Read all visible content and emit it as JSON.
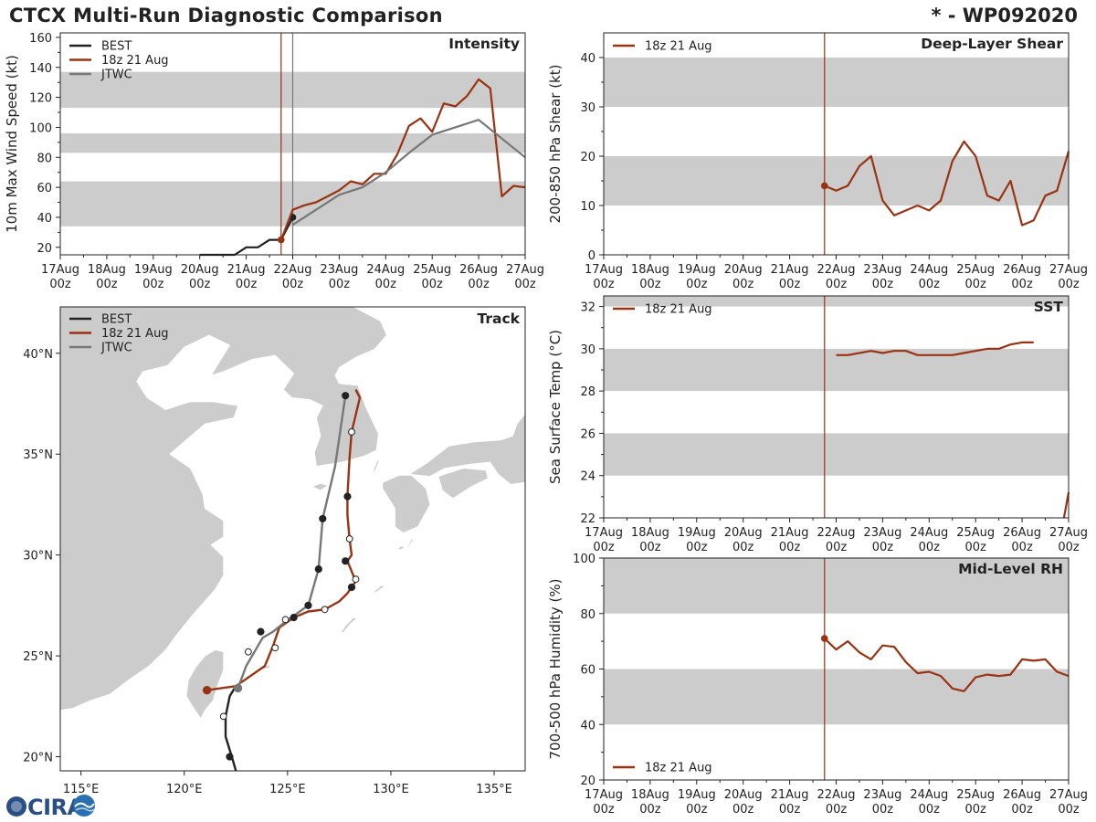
{
  "header": {
    "title": "CTCX Multi-Run Diagnostic Comparison",
    "storm_id": "* - WP092020"
  },
  "colors": {
    "best": "#222222",
    "run": "#993311",
    "jtwc": "#777777",
    "band": "#cccccc",
    "land": "#cccccc",
    "ocean": "#ffffff"
  },
  "logo": {
    "text": "CIRA"
  },
  "chart_data": [
    {
      "id": "intensity",
      "type": "line",
      "title": "Intensity",
      "xlabel": "",
      "ylabel": "10m Max Wind Speed (kt)",
      "xlim": [
        0,
        10
      ],
      "ylim": [
        15,
        163
      ],
      "yticks": [
        20,
        40,
        60,
        80,
        100,
        120,
        140,
        160
      ],
      "xtick_labels": [
        [
          "17Aug",
          "00z"
        ],
        [
          "18Aug",
          "00z"
        ],
        [
          "19Aug",
          "00z"
        ],
        [
          "20Aug",
          "00z"
        ],
        [
          "21Aug",
          "00z"
        ],
        [
          "22Aug",
          "00z"
        ],
        [
          "23Aug",
          "00z"
        ],
        [
          "24Aug",
          "00z"
        ],
        [
          "25Aug",
          "00z"
        ],
        [
          "26Aug",
          "00z"
        ],
        [
          "27Aug",
          "00z"
        ]
      ],
      "bands": [
        [
          34,
          64
        ],
        [
          83,
          96
        ],
        [
          113,
          137
        ]
      ],
      "vlines": [
        {
          "x": 4.75,
          "series": "run"
        },
        {
          "x": 5.0,
          "series": "jtwc"
        }
      ],
      "legend": [
        {
          "label": "BEST",
          "series": "best"
        },
        {
          "label": "18z 21 Aug",
          "series": "run"
        },
        {
          "label": "JTWC",
          "series": "jtwc"
        }
      ],
      "series": [
        {
          "name": "BEST",
          "key": "best",
          "points": [
            [
              3.0,
              15
            ],
            [
              3.25,
              15
            ],
            [
              3.5,
              15
            ],
            [
              3.75,
              15
            ],
            [
              4.0,
              20
            ],
            [
              4.25,
              20
            ],
            [
              4.5,
              25
            ],
            [
              4.75,
              25
            ],
            [
              5.0,
              40
            ]
          ],
          "markers": [
            [
              5.0,
              40
            ]
          ]
        },
        {
          "name": "18z 21 Aug",
          "key": "run",
          "points": [
            [
              4.75,
              25
            ],
            [
              5.0,
              45
            ],
            [
              5.25,
              48
            ],
            [
              5.5,
              50
            ],
            [
              5.75,
              54
            ],
            [
              6.0,
              58
            ],
            [
              6.25,
              64
            ],
            [
              6.5,
              62
            ],
            [
              6.75,
              69
            ],
            [
              7.0,
              69
            ],
            [
              7.25,
              82
            ],
            [
              7.5,
              101
            ],
            [
              7.75,
              106
            ],
            [
              8.0,
              97
            ],
            [
              8.25,
              116
            ],
            [
              8.5,
              114
            ],
            [
              8.75,
              121
            ],
            [
              9.0,
              132
            ],
            [
              9.25,
              126
            ],
            [
              9.5,
              54
            ],
            [
              9.75,
              61
            ],
            [
              10.0,
              60
            ]
          ],
          "markers": [
            [
              4.75,
              25
            ]
          ]
        },
        {
          "name": "JTWC",
          "key": "jtwc",
          "points": [
            [
              5.0,
              35
            ],
            [
              5.5,
              45
            ],
            [
              6.0,
              55
            ],
            [
              6.5,
              60
            ],
            [
              7.0,
              70
            ],
            [
              7.5,
              83
            ],
            [
              8.0,
              95
            ],
            [
              9.0,
              105
            ],
            [
              10.0,
              80
            ]
          ],
          "markers": []
        }
      ]
    },
    {
      "id": "shear",
      "type": "line",
      "title": "Deep-Layer Shear",
      "ylabel": "200-850 hPa Shear (kt)",
      "xlim": [
        0,
        10
      ],
      "ylim": [
        0,
        45
      ],
      "yticks": [
        0,
        10,
        20,
        30,
        40
      ],
      "xtick_labels": [
        [
          "17Aug",
          "00z"
        ],
        [
          "18Aug",
          "00z"
        ],
        [
          "19Aug",
          "00z"
        ],
        [
          "20Aug",
          "00z"
        ],
        [
          "21Aug",
          "00z"
        ],
        [
          "22Aug",
          "00z"
        ],
        [
          "23Aug",
          "00z"
        ],
        [
          "24Aug",
          "00z"
        ],
        [
          "25Aug",
          "00z"
        ],
        [
          "26Aug",
          "00z"
        ],
        [
          "27Aug",
          "00z"
        ]
      ],
      "bands": [
        [
          10,
          20
        ],
        [
          30,
          40
        ]
      ],
      "vlines": [
        {
          "x": 4.75,
          "series": "run"
        }
      ],
      "legend": [
        {
          "label": "18z 21 Aug",
          "series": "run"
        }
      ],
      "series": [
        {
          "name": "18z 21 Aug",
          "key": "run",
          "points": [
            [
              4.75,
              14
            ],
            [
              5.0,
              13
            ],
            [
              5.25,
              14
            ],
            [
              5.5,
              18
            ],
            [
              5.75,
              20
            ],
            [
              6.0,
              11
            ],
            [
              6.25,
              8
            ],
            [
              6.5,
              9
            ],
            [
              6.75,
              10
            ],
            [
              7.0,
              9
            ],
            [
              7.25,
              11
            ],
            [
              7.5,
              19
            ],
            [
              7.75,
              23
            ],
            [
              8.0,
              20
            ],
            [
              8.25,
              12
            ],
            [
              8.5,
              11
            ],
            [
              8.75,
              15
            ],
            [
              9.0,
              6
            ],
            [
              9.25,
              7
            ],
            [
              9.5,
              12
            ],
            [
              9.75,
              13
            ],
            [
              10.0,
              21
            ]
          ],
          "markers": [
            [
              4.75,
              14
            ]
          ]
        }
      ]
    },
    {
      "id": "sst",
      "type": "line",
      "title": "SST",
      "ylabel": "Sea Surface Temp (°C)",
      "xlim": [
        0,
        10
      ],
      "ylim": [
        22,
        32.5
      ],
      "yticks": [
        22,
        24,
        26,
        28,
        30,
        32
      ],
      "xtick_labels": [
        [
          "17Aug",
          "00z"
        ],
        [
          "18Aug",
          "00z"
        ],
        [
          "19Aug",
          "00z"
        ],
        [
          "20Aug",
          "00z"
        ],
        [
          "21Aug",
          "00z"
        ],
        [
          "22Aug",
          "00z"
        ],
        [
          "23Aug",
          "00z"
        ],
        [
          "24Aug",
          "00z"
        ],
        [
          "25Aug",
          "00z"
        ],
        [
          "26Aug",
          "00z"
        ],
        [
          "27Aug",
          "00z"
        ]
      ],
      "bands": [
        [
          24,
          26
        ],
        [
          28,
          30
        ],
        [
          32,
          32.5
        ]
      ],
      "vlines": [
        {
          "x": 4.75,
          "series": "run"
        }
      ],
      "legend": [
        {
          "label": "18z 21 Aug",
          "series": "run"
        }
      ],
      "series": [
        {
          "name": "18z 21 Aug",
          "key": "run",
          "points": [
            [
              5.0,
              29.7
            ],
            [
              5.25,
              29.7
            ],
            [
              5.5,
              29.8
            ],
            [
              5.75,
              29.9
            ],
            [
              6.0,
              29.8
            ],
            [
              6.25,
              29.9
            ],
            [
              6.5,
              29.9
            ],
            [
              6.75,
              29.7
            ],
            [
              7.0,
              29.7
            ],
            [
              7.25,
              29.7
            ],
            [
              7.5,
              29.7
            ],
            [
              7.75,
              29.8
            ],
            [
              8.0,
              29.9
            ],
            [
              8.25,
              30.0
            ],
            [
              8.5,
              30.0
            ],
            [
              8.75,
              30.2
            ],
            [
              9.0,
              30.3
            ],
            [
              9.25,
              30.3
            ]
          ],
          "markers": []
        },
        {
          "name": "18z 21 Aug tail",
          "key": "run",
          "points": [
            [
              9.9,
              22.0
            ],
            [
              10.0,
              23.2
            ]
          ],
          "markers": []
        }
      ]
    },
    {
      "id": "rh",
      "type": "line",
      "title": "Mid-Level RH",
      "ylabel": "700-500 hPa Humidity (%)",
      "xlim": [
        0,
        10
      ],
      "ylim": [
        20,
        100
      ],
      "yticks": [
        20,
        40,
        60,
        80,
        100
      ],
      "xtick_labels": [
        [
          "17Aug",
          "00z"
        ],
        [
          "18Aug",
          "00z"
        ],
        [
          "19Aug",
          "00z"
        ],
        [
          "20Aug",
          "00z"
        ],
        [
          "21Aug",
          "00z"
        ],
        [
          "22Aug",
          "00z"
        ],
        [
          "23Aug",
          "00z"
        ],
        [
          "24Aug",
          "00z"
        ],
        [
          "25Aug",
          "00z"
        ],
        [
          "26Aug",
          "00z"
        ],
        [
          "27Aug",
          "00z"
        ]
      ],
      "bands": [
        [
          40,
          60
        ],
        [
          80,
          100
        ]
      ],
      "vlines": [
        {
          "x": 4.75,
          "series": "run"
        }
      ],
      "legend": [
        {
          "label": "18z 21 Aug",
          "series": "run"
        }
      ],
      "series": [
        {
          "name": "18z 21 Aug",
          "key": "run",
          "points": [
            [
              4.75,
              71
            ],
            [
              5.0,
              67
            ],
            [
              5.25,
              70
            ],
            [
              5.5,
              66
            ],
            [
              5.75,
              63.5
            ],
            [
              6.0,
              68.5
            ],
            [
              6.25,
              68
            ],
            [
              6.5,
              62.5
            ],
            [
              6.75,
              58.5
            ],
            [
              7.0,
              59
            ],
            [
              7.25,
              57.5
            ],
            [
              7.5,
              53
            ],
            [
              7.75,
              52
            ],
            [
              8.0,
              57
            ],
            [
              8.25,
              58
            ],
            [
              8.5,
              57.5
            ],
            [
              8.75,
              58
            ],
            [
              9.0,
              63.5
            ],
            [
              9.25,
              63
            ],
            [
              9.5,
              63.5
            ],
            [
              9.75,
              59
            ],
            [
              10.0,
              57.5
            ]
          ],
          "markers": [
            [
              4.75,
              71
            ]
          ]
        }
      ]
    },
    {
      "id": "track",
      "type": "map",
      "title": "Track",
      "lon_range": [
        114,
        136.5
      ],
      "lat_range": [
        19.3,
        42.3
      ],
      "lon_ticks": [
        115,
        120,
        125,
        130,
        135
      ],
      "lat_ticks": [
        20,
        25,
        30,
        35,
        40
      ],
      "lon_labels": [
        "115°E",
        "120°E",
        "125°E",
        "130°E",
        "135°E"
      ],
      "lat_labels": [
        "20°N",
        "25°N",
        "30°N",
        "35°N",
        "40°N"
      ],
      "legend": [
        {
          "label": "BEST",
          "series": "best"
        },
        {
          "label": "18z 21 Aug",
          "series": "run"
        },
        {
          "label": "JTWC",
          "series": "jtwc"
        }
      ],
      "series": [
        {
          "name": "BEST",
          "key": "best",
          "points": [
            [
              122.5,
              19.3
            ],
            [
              122.3,
              20.0
            ],
            [
              122.0,
              21.0
            ],
            [
              122.0,
              22.0
            ],
            [
              122.2,
              23.0
            ],
            [
              122.5,
              23.5
            ]
          ],
          "markers": [
            {
              "lon": 122.2,
              "lat": 20.0,
              "fill": "filled"
            },
            {
              "lon": 121.9,
              "lat": 22.0,
              "fill": "open"
            }
          ]
        },
        {
          "name": "18z 21 Aug",
          "key": "run",
          "points": [
            [
              121.1,
              23.3
            ],
            [
              122.5,
              23.5
            ],
            [
              123.9,
              24.5
            ],
            [
              124.3,
              25.5
            ],
            [
              124.6,
              26.4
            ],
            [
              125.3,
              26.9
            ],
            [
              126.0,
              27.2
            ],
            [
              126.8,
              27.3
            ],
            [
              127.5,
              27.7
            ],
            [
              127.9,
              28.1
            ],
            [
              128.3,
              28.7
            ],
            [
              127.9,
              29.7
            ],
            [
              128.1,
              30.0
            ],
            [
              128.0,
              30.8
            ],
            [
              127.9,
              32.0
            ],
            [
              127.9,
              32.9
            ],
            [
              128.0,
              34.8
            ],
            [
              128.1,
              36.1
            ],
            [
              128.5,
              37.8
            ],
            [
              128.3,
              38.2
            ]
          ],
          "markers": [
            {
              "lon": 121.1,
              "lat": 23.3,
              "fill": "runfill"
            }
          ]
        },
        {
          "name": "JTWC",
          "key": "jtwc",
          "points": [
            [
              122.6,
              23.4
            ],
            [
              123.0,
              24.5
            ],
            [
              123.4,
              25.2
            ],
            [
              123.8,
              25.9
            ],
            [
              124.3,
              26.2
            ],
            [
              124.9,
              26.7
            ],
            [
              126.0,
              27.5
            ],
            [
              126.5,
              29.3
            ],
            [
              126.7,
              31.8
            ],
            [
              127.3,
              34.4
            ],
            [
              127.8,
              37.9
            ]
          ],
          "markers": [
            {
              "lon": 122.6,
              "lat": 23.4,
              "fill": "jtwcfill"
            }
          ]
        }
      ],
      "track_markers": [
        {
          "lon": 123.1,
          "lat": 25.2,
          "fill": "open"
        },
        {
          "lon": 123.7,
          "lat": 26.2,
          "fill": "filled"
        },
        {
          "lon": 124.9,
          "lat": 26.8,
          "fill": "open"
        },
        {
          "lon": 125.3,
          "lat": 26.9,
          "fill": "filled"
        },
        {
          "lon": 124.4,
          "lat": 25.4,
          "fill": "open"
        },
        {
          "lon": 126.8,
          "lat": 27.3,
          "fill": "open"
        },
        {
          "lon": 126.0,
          "lat": 27.5,
          "fill": "filled"
        },
        {
          "lon": 128.1,
          "lat": 28.4,
          "fill": "filled"
        },
        {
          "lon": 128.3,
          "lat": 28.8,
          "fill": "open"
        },
        {
          "lon": 126.5,
          "lat": 29.3,
          "fill": "filled"
        },
        {
          "lon": 127.8,
          "lat": 29.7,
          "fill": "filled"
        },
        {
          "lon": 128.0,
          "lat": 30.8,
          "fill": "open"
        },
        {
          "lon": 126.7,
          "lat": 31.8,
          "fill": "filled"
        },
        {
          "lon": 127.9,
          "lat": 32.9,
          "fill": "filled"
        },
        {
          "lon": 128.1,
          "lat": 36.1,
          "fill": "open"
        },
        {
          "lon": 127.8,
          "lat": 37.9,
          "fill": "filled"
        }
      ]
    }
  ]
}
